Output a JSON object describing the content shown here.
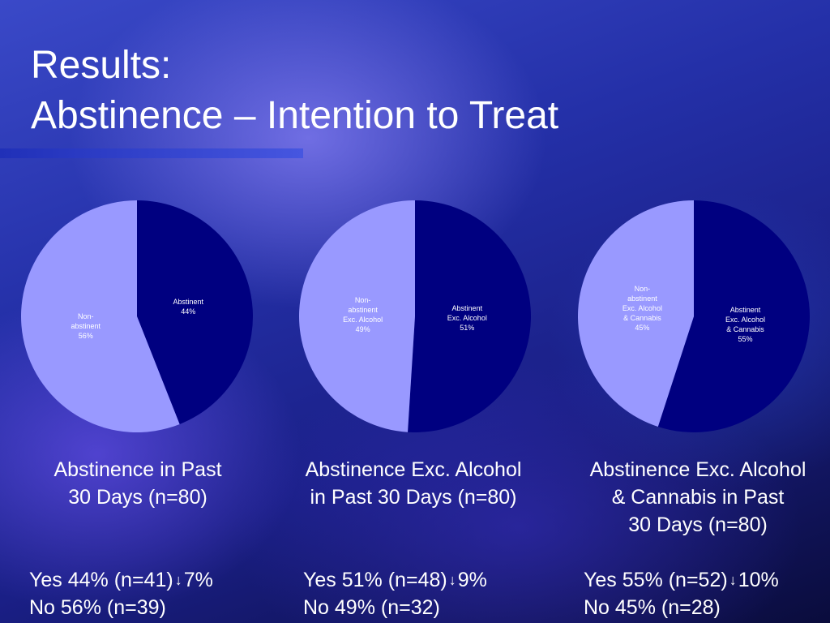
{
  "title": {
    "line1": "Results:",
    "line2": "Abstinence – Intention to Treat"
  },
  "chart_data": [
    {
      "type": "pie",
      "title": "Abstinence in Past 30 Days (n=80)",
      "slices": [
        {
          "label_lines": [
            "Abstinent",
            "44%"
          ],
          "name": "Abstinent",
          "value": 44,
          "color": "#000080"
        },
        {
          "label_lines": [
            "Non-",
            "abstinent",
            "56%"
          ],
          "name": "Non-abstinent",
          "value": 56,
          "color": "#9999ff"
        }
      ]
    },
    {
      "type": "pie",
      "title": "Abstinence Exc. Alcohol in Past 30 Days (n=80)",
      "slices": [
        {
          "label_lines": [
            "Abstinent",
            "Exc. Alcohol",
            "51%"
          ],
          "name": "Abstinent Exc. Alcohol",
          "value": 51,
          "color": "#000080"
        },
        {
          "label_lines": [
            "Non-",
            "abstinent",
            "Exc. Alcohol",
            "49%"
          ],
          "name": "Non-abstinent Exc. Alcohol",
          "value": 49,
          "color": "#9999ff"
        }
      ]
    },
    {
      "type": "pie",
      "title": "Abstinence Exc. Alcohol & Cannabis in Past 30 Days (n=80)",
      "slices": [
        {
          "label_lines": [
            "Abstinent",
            "Exc. Alcohol",
            "& Cannabis",
            "55%"
          ],
          "name": "Abstinent Exc. Alcohol & Cannabis",
          "value": 55,
          "color": "#000080"
        },
        {
          "label_lines": [
            "Non-",
            "abstinent",
            "Exc. Alcohol",
            "& Cannabis",
            "45%"
          ],
          "name": "Non-abstinent Exc. Alcohol & Cannabis",
          "value": 45,
          "color": "#9999ff"
        }
      ]
    }
  ],
  "captions": [
    {
      "line1": "Abstinence in Past",
      "line2": "30 Days (n=80)",
      "line3": ""
    },
    {
      "line1": "Abstinence Exc. Alcohol",
      "line2": "in Past 30 Days (n=80)",
      "line3": ""
    },
    {
      "line1": "Abstinence Exc. Alcohol",
      "line2": "& Cannabis in Past",
      "line3": "30 Days (n=80)"
    }
  ],
  "stats": [
    {
      "yes": "Yes 44% (n=41)",
      "change": "7%",
      "no": "No 56% (n=39)"
    },
    {
      "yes": "Yes 51% (n=48)",
      "change": "9%",
      "no": "No 49% (n=32)"
    },
    {
      "yes": "Yes 55% (n=52)",
      "change": "10%",
      "no": "No 45% (n=28)"
    }
  ],
  "arrow_symbol": "↓"
}
